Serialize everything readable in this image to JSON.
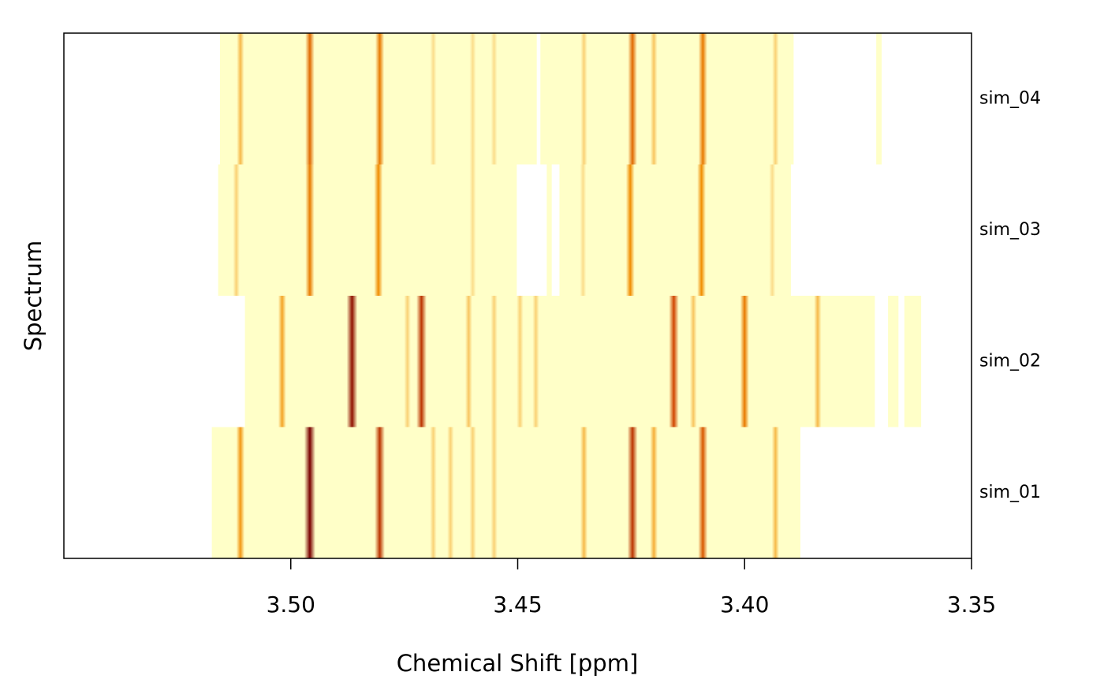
{
  "chart_data": {
    "type": "heatmap",
    "x_label": "Chemical Shift [ppm]",
    "y_label": "Spectrum",
    "xlim": [
      3.55,
      3.35
    ],
    "xticks": [
      {
        "value": 3.5,
        "label": "3.50"
      },
      {
        "value": 3.45,
        "label": "3.45"
      },
      {
        "value": 3.4,
        "label": "3.40"
      },
      {
        "value": 3.35,
        "label": "3.35"
      }
    ],
    "color_scale": [
      "#ffffc8",
      "#fde9a0",
      "#f6b94a",
      "#f08c00",
      "#d04500",
      "#7a0000"
    ],
    "series": [
      {
        "name": "sim_01",
        "segments": [
          [
            3.5174,
            3.3877
          ]
        ],
        "peak_ppm": [
          3.5111,
          3.4958,
          3.4804,
          3.4686,
          3.4648,
          3.4599,
          3.4552,
          3.4354,
          3.4247,
          3.42,
          3.4092,
          3.3932
        ],
        "peak_intensity": [
          0.55,
          1.0,
          0.85,
          0.3,
          0.3,
          0.3,
          0.3,
          0.4,
          0.85,
          0.45,
          0.75,
          0.4
        ]
      },
      {
        "name": "sim_02",
        "segments": [
          [
            3.5101,
            3.3713
          ],
          [
            3.3684,
            3.3661
          ],
          [
            3.3648,
            3.3611
          ]
        ],
        "peak_ppm": [
          3.5019,
          3.4865,
          3.4743,
          3.4712,
          3.4608,
          3.4552,
          3.4495,
          3.446,
          3.4156,
          3.4113,
          3.4,
          3.3839
        ],
        "peak_intensity": [
          0.5,
          0.95,
          0.3,
          0.85,
          0.35,
          0.3,
          0.3,
          0.3,
          0.8,
          0.35,
          0.65,
          0.4
        ]
      },
      {
        "name": "sim_03",
        "segments": [
          [
            3.516,
            3.4502
          ],
          [
            3.4436,
            3.4425
          ],
          [
            3.4408,
            3.3898
          ]
        ],
        "peak_ppm": [
          3.512,
          3.4958,
          3.4807,
          3.4599,
          3.4356,
          3.4252,
          3.4095,
          3.3939
        ],
        "peak_intensity": [
          0.3,
          0.65,
          0.6,
          0.25,
          0.25,
          0.6,
          0.6,
          0.25
        ]
      },
      {
        "name": "sim_04",
        "segments": [
          [
            3.5156,
            3.4458
          ],
          [
            3.445,
            3.3892
          ],
          [
            3.371,
            3.3698
          ]
        ],
        "peak_ppm": [
          3.5111,
          3.4958,
          3.4804,
          3.4686,
          3.4599,
          3.4552,
          3.4354,
          3.4247,
          3.42,
          3.4092,
          3.3932
        ],
        "peak_intensity": [
          0.4,
          0.7,
          0.65,
          0.25,
          0.25,
          0.25,
          0.3,
          0.7,
          0.35,
          0.65,
          0.3
        ]
      }
    ]
  }
}
